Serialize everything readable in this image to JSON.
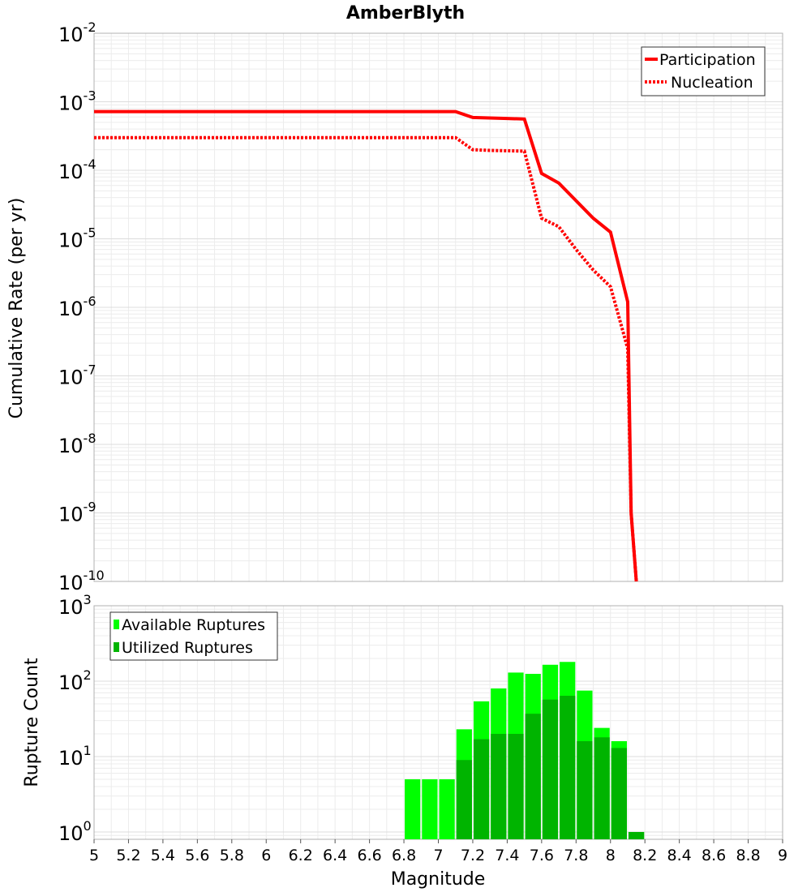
{
  "chart_data": [
    {
      "type": "line",
      "title": "AmberBlyth",
      "xlabel": "",
      "ylabel": "Cumulative Rate (per yr)",
      "yscale": "log",
      "ylim": [
        1e-10,
        0.01
      ],
      "xlim": [
        5,
        9
      ],
      "ytick_exponents": [
        -2,
        -3,
        -4,
        -5,
        -6,
        -7,
        -8,
        -9,
        -10
      ],
      "grid": true,
      "legend_position": "top-right",
      "series": [
        {
          "name": "Participation",
          "style": "solid",
          "color": "#ff0000",
          "x": [
            5.0,
            7.1,
            7.2,
            7.3,
            7.4,
            7.5,
            7.6,
            7.7,
            7.8,
            7.9,
            8.0,
            8.1,
            8.12,
            8.15
          ],
          "y": [
            0.00072,
            0.00072,
            0.00059,
            0.00058,
            0.00057,
            0.00056,
            9e-05,
            6.5e-05,
            3.6e-05,
            2e-05,
            1.25e-05,
            1.2e-06,
            1e-09,
            1e-10
          ]
        },
        {
          "name": "Nucleation",
          "style": "dotted",
          "color": "#ff0000",
          "x": [
            5.0,
            7.1,
            7.2,
            7.3,
            7.4,
            7.5,
            7.6,
            7.7,
            7.8,
            7.9,
            8.0,
            8.1,
            8.12,
            8.15
          ],
          "y": [
            0.0003,
            0.0003,
            0.0002,
            0.000195,
            0.000193,
            0.00019,
            2e-05,
            1.5e-05,
            7e-06,
            3.5e-06,
            2e-06,
            2.5e-07,
            1e-09,
            1e-10
          ]
        }
      ]
    },
    {
      "type": "bar",
      "title": "",
      "xlabel": "Magnitude",
      "ylabel": "Rupture Count",
      "yscale": "log",
      "ylim": [
        0.8,
        1000
      ],
      "xlim": [
        5,
        9
      ],
      "ytick_exponents": [
        3,
        2,
        1,
        0
      ],
      "xticks": [
        "5",
        "5.2",
        "5.4",
        "5.6",
        "5.8",
        "6",
        "6.2",
        "6.4",
        "6.6",
        "6.8",
        "7",
        "7.2",
        "7.4",
        "7.6",
        "7.8",
        "8",
        "8.2",
        "8.4",
        "8.6",
        "8.8",
        "9"
      ],
      "grid": true,
      "legend_position": "top-left",
      "bin_width": 0.1,
      "categories": [
        6.85,
        6.95,
        7.05,
        7.15,
        7.25,
        7.35,
        7.45,
        7.55,
        7.65,
        7.75,
        7.85,
        7.95,
        8.05,
        8.15
      ],
      "series": [
        {
          "name": "Available Ruptures",
          "color": "#00ff00",
          "values": [
            5,
            5,
            5,
            23,
            54,
            80,
            130,
            125,
            165,
            180,
            75,
            24,
            16,
            1
          ]
        },
        {
          "name": "Utilized Ruptures",
          "color": "#00b400",
          "values": [
            0,
            0,
            0,
            9,
            17,
            20,
            20,
            37,
            57,
            64,
            16,
            18,
            13,
            1
          ]
        }
      ]
    }
  ]
}
